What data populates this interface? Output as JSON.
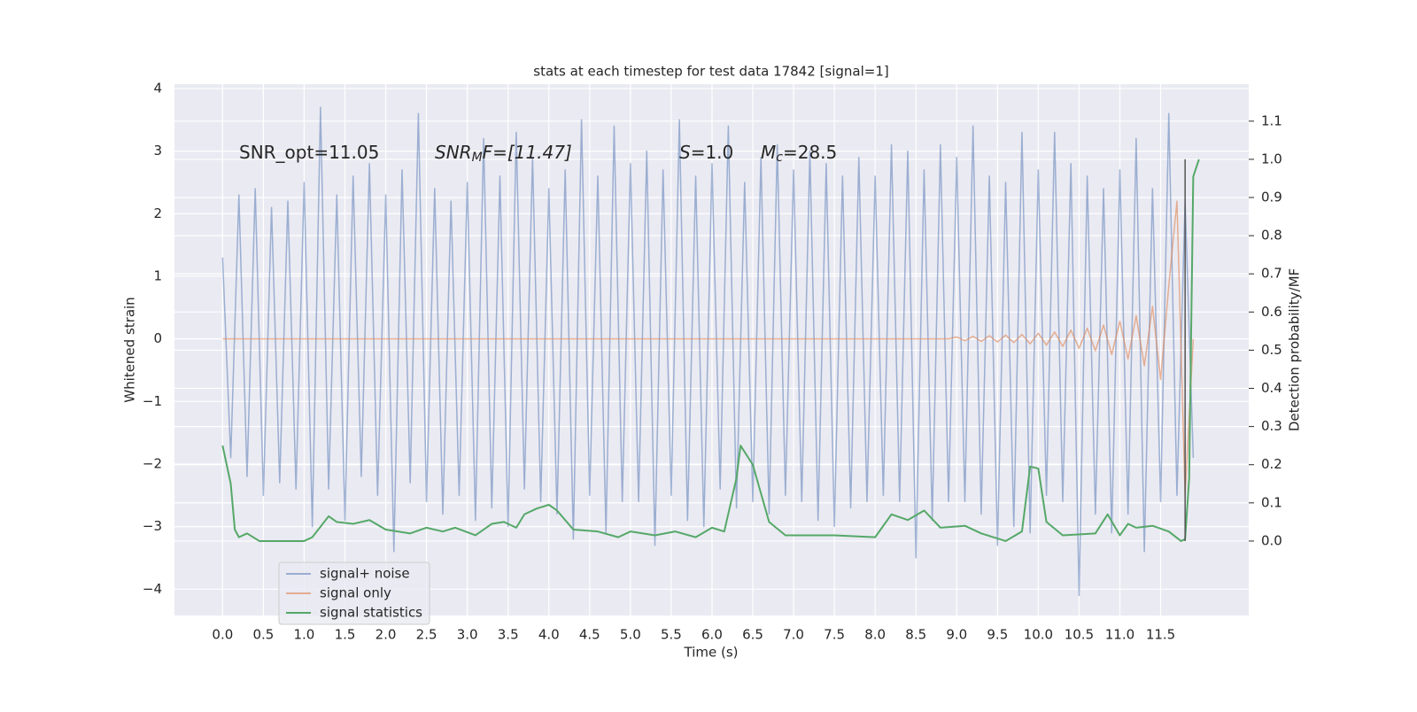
{
  "chart_data": {
    "type": "line",
    "title": "stats at each timestep for test data 17842 [signal=1]",
    "xlabel": "Time (s)",
    "ylabel": "Whitened strain",
    "y2label": "Detection probability/MF",
    "annotations": [
      {
        "main": "SNR_opt=11.05"
      },
      {
        "main": "SNR",
        "sub": "M",
        "rest": "F=[11.47]"
      },
      {
        "main": "S",
        "rest": "=1.0"
      },
      {
        "main": "M",
        "sub": "c",
        "rest": "=28.5"
      }
    ],
    "x": [
      0,
      0.1,
      0.2,
      0.3,
      0.4,
      0.5,
      0.6,
      0.7,
      0.8,
      0.9,
      1,
      1.1,
      1.2,
      1.3,
      1.4,
      1.5,
      1.6,
      1.7,
      1.8,
      1.9,
      2,
      2.1,
      2.2,
      2.3,
      2.4,
      2.5,
      2.6,
      2.7,
      2.8,
      2.9,
      3,
      3.1,
      3.2,
      3.3,
      3.4,
      3.5,
      3.6,
      3.7,
      3.8,
      3.9,
      4,
      4.1,
      4.2,
      4.3,
      4.4,
      4.5,
      4.6,
      4.7,
      4.8,
      4.9,
      5,
      5.1,
      5.2,
      5.3,
      5.4,
      5.5,
      5.6,
      5.7,
      5.8,
      5.9,
      6,
      6.1,
      6.2,
      6.3,
      6.4,
      6.5,
      6.6,
      6.7,
      6.8,
      6.9,
      7,
      7.1,
      7.2,
      7.3,
      7.4,
      7.5,
      7.6,
      7.7,
      7.8,
      7.9,
      8,
      8.1,
      8.2,
      8.3,
      8.4,
      8.5,
      8.6,
      8.7,
      8.8,
      8.9,
      9,
      9.1,
      9.2,
      9.3,
      9.4,
      9.5,
      9.6,
      9.7,
      9.8,
      9.9,
      10,
      10.1,
      10.2,
      10.3,
      10.4,
      10.5,
      10.6,
      10.7,
      10.8,
      10.9,
      11,
      11.1,
      11.2,
      11.3,
      11.4,
      11.5,
      11.6,
      11.7,
      11.8,
      11.9
    ],
    "series": [
      {
        "name": "signal+ noise",
        "color": "#4c72b0",
        "values": [
          1.3,
          -1.9,
          2.3,
          -2.2,
          2.4,
          -2.5,
          2.1,
          -2.3,
          2.2,
          -2.4,
          2.5,
          -3.0,
          3.7,
          -2.4,
          2.3,
          -2.9,
          2.6,
          -2.2,
          2.8,
          -2.5,
          2.3,
          -3.4,
          2.7,
          -2.3,
          3.6,
          -2.6,
          2.4,
          -2.8,
          2.2,
          -2.5,
          2.5,
          -2.9,
          3.2,
          -2.7,
          2.6,
          -3.0,
          3.3,
          -2.4,
          2.9,
          -2.6,
          2.4,
          -2.8,
          2.7,
          -3.2,
          3.5,
          -2.5,
          2.6,
          -3.1,
          3.4,
          -2.6,
          2.8,
          -2.6,
          3.0,
          -3.3,
          2.7,
          -2.5,
          3.5,
          -2.9,
          2.6,
          -3.0,
          2.8,
          -2.4,
          3.4,
          -2.7,
          2.5,
          -2.6,
          2.9,
          -2.8,
          3.1,
          -2.5,
          2.7,
          -2.6,
          3.0,
          -2.9,
          2.8,
          -3.0,
          2.6,
          -2.7,
          2.9,
          -2.6,
          2.6,
          -2.5,
          3.1,
          -2.6,
          3.0,
          -3.5,
          2.7,
          -2.9,
          3.1,
          -2.6,
          2.9,
          -2.6,
          3.4,
          -2.8,
          2.6,
          -3.3,
          2.5,
          -3.0,
          3.3,
          -3.1,
          2.7,
          -2.5,
          3.3,
          -2.6,
          2.8,
          -4.1,
          2.6,
          -2.8,
          2.4,
          -3.1,
          2.7,
          -2.8,
          3.2,
          -3.4,
          2.4,
          -2.6,
          3.6,
          -2.5,
          2.2,
          -1.9
        ]
      },
      {
        "name": "signal only",
        "color": "#dd8452",
        "values": [
          0,
          0,
          0,
          0,
          0,
          0,
          0,
          0,
          0,
          0,
          0,
          0,
          0,
          0,
          0,
          0,
          0,
          0,
          0,
          0,
          0,
          0,
          0,
          0,
          0,
          0,
          0,
          0,
          0,
          0,
          0,
          0,
          0,
          0,
          0,
          0,
          0,
          0,
          0,
          0,
          0,
          0,
          0,
          0,
          0,
          0,
          0,
          0,
          0,
          0,
          0,
          0,
          0,
          0,
          0,
          0,
          0,
          0,
          0,
          0,
          0,
          0,
          0,
          0,
          0,
          0,
          0,
          0,
          0,
          0,
          0,
          0,
          0,
          0,
          0,
          0,
          0,
          0,
          0,
          0,
          0,
          0,
          0,
          0,
          0,
          0,
          0,
          0,
          0,
          0,
          0.03,
          -0.03,
          0.04,
          -0.04,
          0.05,
          -0.05,
          0.06,
          -0.06,
          0.07,
          -0.08,
          0.09,
          -0.1,
          0.11,
          -0.12,
          0.14,
          -0.15,
          0.17,
          -0.19,
          0.22,
          -0.25,
          0.28,
          -0.32,
          0.37,
          -0.43,
          0.52,
          -0.65,
          0.85,
          2.2,
          -2.5,
          0
        ]
      },
      {
        "name": "signal statistics",
        "color": "#55a868",
        "axis": "y2",
        "x": [
          0,
          0.1,
          0.15,
          0.2,
          0.3,
          0.45,
          0.6,
          1.0,
          1.1,
          1.3,
          1.4,
          1.6,
          1.8,
          2.0,
          2.3,
          2.5,
          2.7,
          2.85,
          3.1,
          3.3,
          3.45,
          3.6,
          3.7,
          3.85,
          4.0,
          4.1,
          4.3,
          4.6,
          4.85,
          5.0,
          5.3,
          5.55,
          5.8,
          6.0,
          6.15,
          6.3,
          6.35,
          6.5,
          6.7,
          6.9,
          7.5,
          8.0,
          8.2,
          8.4,
          8.6,
          8.8,
          9.1,
          9.3,
          9.6,
          9.8,
          9.9,
          10.0,
          10.1,
          10.3,
          10.7,
          10.85,
          11.0,
          11.1,
          11.2,
          11.4,
          11.6,
          11.75,
          11.8,
          11.85,
          11.9,
          11.97
        ],
        "values": [
          0.25,
          0.15,
          0.03,
          0.01,
          0.02,
          0.0,
          0.0,
          0.0,
          0.01,
          0.065,
          0.05,
          0.045,
          0.055,
          0.03,
          0.02,
          0.035,
          0.025,
          0.035,
          0.015,
          0.045,
          0.05,
          0.035,
          0.07,
          0.085,
          0.095,
          0.08,
          0.03,
          0.025,
          0.01,
          0.025,
          0.015,
          0.025,
          0.01,
          0.035,
          0.025,
          0.165,
          0.25,
          0.2,
          0.05,
          0.015,
          0.015,
          0.01,
          0.07,
          0.055,
          0.08,
          0.035,
          0.04,
          0.02,
          0.0,
          0.025,
          0.195,
          0.19,
          0.05,
          0.015,
          0.02,
          0.07,
          0.015,
          0.045,
          0.035,
          0.04,
          0.025,
          0.0,
          0.005,
          0.165,
          0.955,
          1.0
        ]
      }
    ],
    "vline": {
      "x": 11.8,
      "y2span": [
        0,
        1
      ],
      "color": "#555555"
    },
    "xlim": [
      -0.59,
      12.58
    ],
    "ylim": [
      -4.42,
      4.07
    ],
    "y2lim": [
      -0.195,
      1.197
    ],
    "xticks": [
      {
        "value": 0,
        "label": "0.0"
      },
      0.5,
      {
        "value": 1,
        "label": "1.0"
      },
      1.5,
      {
        "value": 2,
        "label": "2.0"
      },
      2.5,
      {
        "value": 3,
        "label": "3.0"
      },
      3.5,
      {
        "value": 4,
        "label": "4.0"
      },
      4.5,
      {
        "value": 5,
        "label": "5.0"
      },
      5.5,
      {
        "value": 6,
        "label": "6.0"
      },
      6.5,
      {
        "value": 7,
        "label": "7.0"
      },
      7.5,
      {
        "value": 8,
        "label": "8.0"
      },
      8.5,
      {
        "value": 9,
        "label": "9.0"
      },
      9.5,
      {
        "value": 10,
        "label": "10.0"
      },
      10.5,
      {
        "value": 11,
        "label": "11.0"
      },
      11.5
    ],
    "yticks": [
      {
        "value": -4,
        "label": "−4"
      },
      {
        "value": -3,
        "label": "−3"
      },
      {
        "value": -2,
        "label": "−2"
      },
      {
        "value": -1,
        "label": "−1"
      },
      0,
      1,
      2,
      3,
      4
    ],
    "y2ticks": [
      {
        "value": 0,
        "label": "0.0"
      },
      0.1,
      0.2,
      0.3,
      0.4,
      0.5,
      0.6,
      0.7,
      0.8,
      0.9,
      {
        "value": 1,
        "label": "1.0"
      },
      1.1
    ],
    "grid": true,
    "legend": "lower left"
  }
}
